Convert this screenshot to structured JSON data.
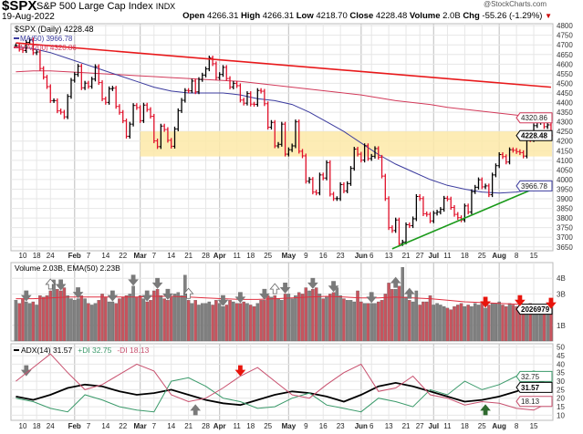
{
  "header": {
    "symbol": "$SPX",
    "name": "S&P 500 Large Cap Index",
    "exchange": "INDX",
    "date": "19-Aug-2022",
    "watermark": "@StockCharts.com",
    "open_label": "Open",
    "open": "4266.31",
    "high_label": "High",
    "high": "4266.31",
    "low_label": "Low",
    "low": "4218.70",
    "close_label": "Close",
    "close": "4228.48",
    "volume_label": "Volume",
    "volume": "2.0B",
    "chg_label": "Chg",
    "chg": "-55.26 (-1.29%)"
  },
  "legend": {
    "price": "$SPX (Daily) 4228.48",
    "ma50": "MA(50) 3966.78",
    "ma200": "MA(200) 4320.86",
    "volume": "Volume 2.03B, EMA(50) 2.23B",
    "adx": "ADX(14) 31.57",
    "pdi": "+DI 32.75",
    "mdi": "-DI 18.13"
  },
  "colors": {
    "up": "#000000",
    "down": "#e0102a",
    "ma50": "#3b3b9e",
    "ma200": "#d23a5a",
    "trend_down": "#e8191b",
    "trend_up": "#1a9a1a",
    "band": "#fde9a8",
    "vol_up": "#808080",
    "vol_down": "#c8545e",
    "adx": "#000000",
    "pdi": "#3a9a6a",
    "mdi": "#c8506e"
  },
  "chart_data": [
    {
      "type": "ohlc-bar",
      "title": "$SPX (Daily)",
      "yticks": [
        3650,
        3700,
        3750,
        3800,
        3850,
        3900,
        3950,
        4000,
        4050,
        4100,
        4150,
        4200,
        4250,
        4300,
        4350,
        4400,
        4450,
        4500,
        4550,
        4600,
        4650,
        4700,
        4750,
        4800
      ],
      "ylim": [
        3630,
        4810
      ],
      "grid": true,
      "x_ticks": [
        {
          "i": 2,
          "label": "10"
        },
        {
          "i": 6,
          "label": "18"
        },
        {
          "i": 10,
          "label": "24"
        },
        {
          "i": 17,
          "label": "Feb",
          "bold": true
        },
        {
          "i": 21,
          "label": "7"
        },
        {
          "i": 26,
          "label": "14"
        },
        {
          "i": 31,
          "label": "22"
        },
        {
          "i": 36,
          "label": "Mar",
          "bold": true
        },
        {
          "i": 40,
          "label": "7"
        },
        {
          "i": 45,
          "label": "14"
        },
        {
          "i": 50,
          "label": "21"
        },
        {
          "i": 55,
          "label": "28"
        },
        {
          "i": 59,
          "label": "Apr",
          "bold": true
        },
        {
          "i": 64,
          "label": "11"
        },
        {
          "i": 68,
          "label": "18"
        },
        {
          "i": 73,
          "label": "25"
        },
        {
          "i": 79,
          "label": "May",
          "bold": true
        },
        {
          "i": 84,
          "label": "9"
        },
        {
          "i": 89,
          "label": "16"
        },
        {
          "i": 94,
          "label": "23"
        },
        {
          "i": 100,
          "label": "Jun",
          "bold": true
        },
        {
          "i": 103,
          "label": "6"
        },
        {
          "i": 108,
          "label": "13"
        },
        {
          "i": 113,
          "label": "21"
        },
        {
          "i": 117,
          "label": "27"
        },
        {
          "i": 121,
          "label": "Jul",
          "bold": true
        },
        {
          "i": 125,
          "label": "11"
        },
        {
          "i": 130,
          "label": "18"
        },
        {
          "i": 135,
          "label": "25"
        },
        {
          "i": 140,
          "label": "Aug",
          "bold": true
        },
        {
          "i": 145,
          "label": "8"
        },
        {
          "i": 150,
          "label": "15"
        }
      ],
      "close": [
        4696,
        4677,
        4670,
        4713,
        4726,
        4659,
        4663,
        4577,
        4532,
        4483,
        4410,
        4410,
        4357,
        4350,
        4326,
        4432,
        4516,
        4546,
        4589,
        4477,
        4501,
        4484,
        4522,
        4587,
        4504,
        4419,
        4401,
        4472,
        4475,
        4380,
        4349,
        4305,
        4225,
        4288,
        4385,
        4374,
        4306,
        4387,
        4364,
        4329,
        4201,
        4171,
        4278,
        4260,
        4204,
        4173,
        4263,
        4358,
        4412,
        4463,
        4461,
        4512,
        4456,
        4520,
        4543,
        4575,
        4632,
        4602,
        4530,
        4546,
        4583,
        4525,
        4481,
        4500,
        4488,
        4413,
        4397,
        4447,
        4392,
        4391,
        4463,
        4459,
        4394,
        4272,
        4297,
        4175,
        4183,
        4288,
        4132,
        4155,
        4175,
        4300,
        4147,
        4123,
        3991,
        4001,
        3935,
        3930,
        4024,
        4008,
        4088,
        3924,
        3901,
        3901,
        3974,
        3941,
        3979,
        4058,
        4158,
        4132,
        4101,
        4176,
        4109,
        4121,
        4161,
        4116,
        4018,
        3901,
        3750,
        3735,
        3790,
        3667,
        3675,
        3765,
        3760,
        3796,
        3912,
        3901,
        3822,
        3819,
        3785,
        3825,
        3831,
        3845,
        3903,
        3899,
        3855,
        3819,
        3802,
        3790,
        3863,
        3831,
        3937,
        3960,
        3999,
        3962,
        3967,
        3921,
        4024,
        4072,
        4130,
        4119,
        4091,
        4155,
        4152,
        4145,
        4140,
        4122,
        4210,
        4207,
        4280,
        4297,
        4305,
        4275,
        4284,
        4228.48
      ],
      "ma50_every5": [
        4690,
        4680,
        4660,
        4630,
        4600,
        4570,
        4540,
        4510,
        4480,
        4460,
        4450,
        4450,
        4450,
        4440,
        4420,
        4410,
        4390,
        4350,
        4300,
        4250,
        4190,
        4130,
        4080,
        4040,
        4000,
        3970,
        3950,
        3935,
        3930,
        3935,
        3950,
        3966.78
      ],
      "ma200_every5": [
        4560,
        4565,
        4565,
        4560,
        4555,
        4550,
        4545,
        4540,
        4535,
        4530,
        4525,
        4520,
        4515,
        4510,
        4500,
        4490,
        4480,
        4470,
        4460,
        4450,
        4440,
        4425,
        4410,
        4400,
        4390,
        4375,
        4365,
        4355,
        4345,
        4335,
        4328,
        4320.86
      ],
      "support_band": [
        4120,
        4250
      ],
      "support_band_start_i": 36,
      "trendlines": [
        {
          "kind": "down",
          "from": [
            0,
            4710
          ],
          "to": [
            155,
            4480
          ]
        },
        {
          "kind": "up",
          "from": [
            109,
            3640
          ],
          "to": [
            155,
            3990
          ]
        }
      ],
      "last_value_tags": [
        {
          "value": "4320.86",
          "level": 4320.86,
          "kind": "ma200"
        },
        {
          "value": "4228.48",
          "level": 4228.48,
          "kind": "price"
        },
        {
          "value": "3966.78",
          "level": 3966.78,
          "kind": "ma50"
        }
      ]
    },
    {
      "type": "bar",
      "title": "Volume",
      "units": "B",
      "yticks": [
        {
          "v": 1,
          "label": "1B"
        },
        {
          "v": 3,
          "label": "3B"
        },
        {
          "v": 4,
          "label": "4B"
        }
      ],
      "ylim": [
        0,
        5
      ],
      "values": [
        2.6,
        2.4,
        2.7,
        2.5,
        2.4,
        2.5,
        2.3,
        2.9,
        2.8,
        2.9,
        3.2,
        3.9,
        3.3,
        3.2,
        3.4,
        2.9,
        2.7,
        2.6,
        2.7,
        2.9,
        2.7,
        2.4,
        2.3,
        2.4,
        2.6,
        3.0,
        2.8,
        2.5,
        2.5,
        2.4,
        2.7,
        2.8,
        2.9,
        3.0,
        3.5,
        2.8,
        2.9,
        2.7,
        2.5,
        2.6,
        3.2,
        3.3,
        2.9,
        2.7,
        2.6,
        2.8,
        3.0,
        3.1,
        2.9,
        4.2,
        2.6,
        2.4,
        2.6,
        2.3,
        2.4,
        2.4,
        2.5,
        2.3,
        2.6,
        2.4,
        2.2,
        2.3,
        2.6,
        2.5,
        2.4,
        2.4,
        2.5,
        2.4,
        2.3,
        2.2,
        2.4,
        2.6,
        2.6,
        2.9,
        2.8,
        2.9,
        2.7,
        2.6,
        3.0,
        3.0,
        2.7,
        2.9,
        3.1,
        3.0,
        3.4,
        3.2,
        3.3,
        3.4,
        3.0,
        2.7,
        2.8,
        3.0,
        3.1,
        3.4,
        2.9,
        2.7,
        2.6,
        2.6,
        2.5,
        3.2,
        2.5,
        2.4,
        2.4,
        2.4,
        2.4,
        2.5,
        2.6,
        3.0,
        3.7,
        3.3,
        3.3,
        3.5,
        4.7,
        2.8,
        2.6,
        2.5,
        3.2,
        2.3,
        2.5,
        2.5,
        2.9,
        2.3,
        2.4,
        2.3,
        2.2,
        2.1,
        2.0,
        2.2,
        2.3,
        2.4,
        2.2,
        2.3,
        2.2,
        2.4,
        2.3,
        2.4,
        2.1,
        2.3,
        2.4,
        2.4,
        2.5,
        2.3,
        2.2,
        2.4,
        2.3,
        2.2,
        2.2,
        2.1,
        2.3,
        2.4,
        2.2,
        2.0,
        2.1,
        2.1,
        2.0,
        2.03
      ],
      "ema50_every5": [
        2.7,
        2.7,
        2.75,
        2.8,
        2.8,
        2.8,
        2.8,
        2.8,
        2.85,
        2.85,
        2.8,
        2.75,
        2.7,
        2.65,
        2.65,
        2.7,
        2.75,
        2.8,
        2.85,
        2.8,
        2.75,
        2.75,
        2.8,
        2.75,
        2.7,
        2.6,
        2.5,
        2.45,
        2.4,
        2.35,
        2.3,
        2.23
      ],
      "last_value_tag": "2026979",
      "arrows": [
        {
          "i": 10,
          "dir": "up",
          "style": "hollow"
        },
        {
          "i": 3,
          "dir": "down",
          "style": "gray"
        },
        {
          "i": 13,
          "dir": "down",
          "style": "gray"
        },
        {
          "i": 18,
          "dir": "down",
          "style": "gray"
        },
        {
          "i": 28,
          "dir": "down",
          "style": "gray"
        },
        {
          "i": 34,
          "dir": "down",
          "style": "gray"
        },
        {
          "i": 38,
          "dir": "down",
          "style": "gray"
        },
        {
          "i": 41,
          "dir": "down",
          "style": "gray"
        },
        {
          "i": 44,
          "dir": "down",
          "style": "gray"
        },
        {
          "i": 50,
          "dir": "up",
          "style": "hollow"
        },
        {
          "i": 60,
          "dir": "down",
          "style": "gray"
        },
        {
          "i": 65,
          "dir": "down",
          "style": "gray"
        },
        {
          "i": 72,
          "dir": "down",
          "style": "gray"
        },
        {
          "i": 75,
          "dir": "up",
          "style": "hollow"
        },
        {
          "i": 78,
          "dir": "down",
          "style": "gray"
        },
        {
          "i": 86,
          "dir": "down",
          "style": "gray"
        },
        {
          "i": 92,
          "dir": "down",
          "style": "gray"
        },
        {
          "i": 103,
          "dir": "down",
          "style": "gray"
        },
        {
          "i": 110,
          "dir": "up",
          "style": "gray"
        },
        {
          "i": 114,
          "dir": "up",
          "style": "gray"
        },
        {
          "i": 136,
          "dir": "down",
          "style": "red"
        },
        {
          "i": 146,
          "dir": "down",
          "style": "red"
        },
        {
          "i": 155,
          "dir": "down",
          "style": "red"
        }
      ]
    },
    {
      "type": "line",
      "title": "ADX(14)",
      "yticks": [
        10,
        15,
        20,
        25,
        30,
        35,
        40,
        45,
        50
      ],
      "ylim": [
        7,
        52
      ],
      "series": [
        {
          "name": "ADX(14)",
          "key": "adx",
          "every5": [
            21,
            19,
            22,
            26,
            28,
            27,
            24,
            22,
            23,
            25,
            22,
            19,
            17,
            16,
            19,
            22,
            24,
            23,
            21,
            18,
            22,
            27,
            29,
            27,
            24,
            21,
            18,
            19,
            21,
            24,
            28,
            31.57
          ],
          "tag": "31.57"
        },
        {
          "name": "+DI",
          "key": "pdi",
          "every5": [
            20,
            18,
            14,
            12,
            22,
            19,
            15,
            13,
            12,
            30,
            32,
            27,
            20,
            18,
            14,
            15,
            20,
            23,
            16,
            14,
            12,
            20,
            18,
            15,
            25,
            22,
            30,
            25,
            28,
            33,
            36,
            32.75
          ],
          "tag": "32.75"
        },
        {
          "name": "-DI",
          "key": "mdi",
          "every5": [
            30,
            38,
            46,
            35,
            25,
            28,
            34,
            40,
            36,
            22,
            18,
            20,
            26,
            33,
            38,
            30,
            22,
            20,
            28,
            35,
            40,
            24,
            26,
            33,
            22,
            20,
            16,
            18,
            17,
            14,
            13,
            18.13
          ],
          "tag": "18.13"
        }
      ],
      "arrows": [
        {
          "i": 3,
          "dir": "down",
          "style": "gray"
        },
        {
          "i": 52,
          "dir": "up",
          "style": "gray"
        },
        {
          "i": 65,
          "dir": "down",
          "style": "red"
        },
        {
          "i": 136,
          "dir": "up",
          "style": "green"
        }
      ]
    }
  ]
}
